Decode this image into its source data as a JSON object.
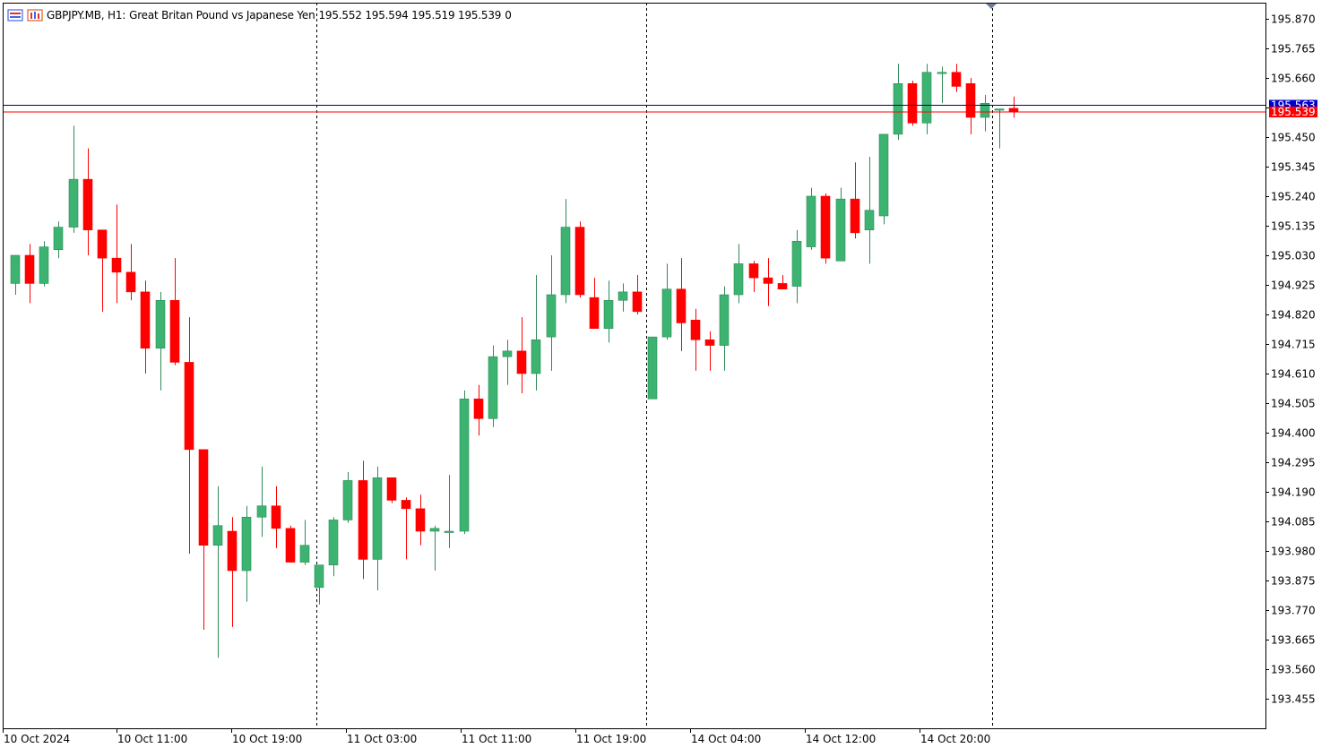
{
  "header": {
    "symbol": "GBPJPY.MB, H1:",
    "description": "Great Britan Pound vs Japanese Yen",
    "ohlc": "195.552 195.594 195.519 195.539",
    "volume": "0"
  },
  "colors": {
    "bull": "#3cb371",
    "bear": "#ff0000",
    "wick_bull": "#2e8b57",
    "bid_line": "#ff0000",
    "ask_line": "#000080",
    "axis": "#000000",
    "text": "#000000"
  },
  "chart_data": {
    "type": "candlestick",
    "timeframe": "H1",
    "y_ticks": [
      "195.870",
      "195.765",
      "195.660",
      "195.555",
      "195.450",
      "195.345",
      "195.240",
      "195.135",
      "195.030",
      "194.925",
      "194.820",
      "194.715",
      "194.610",
      "194.505",
      "194.400",
      "194.295",
      "194.190",
      "194.085",
      "193.980",
      "193.875",
      "193.770",
      "193.665",
      "193.560",
      "193.455"
    ],
    "x_labels": [
      "10 Oct 2024",
      "10 Oct 11:00",
      "10 Oct 19:00",
      "11 Oct 03:00",
      "11 Oct 11:00",
      "11 Oct 19:00",
      "14 Oct 04:00",
      "14 Oct 12:00",
      "14 Oct 20:00"
    ],
    "session_separators": [
      "10 Oct 2024 22:00",
      "11 Oct 2024 21:00",
      "14 Oct 2024 21:00"
    ],
    "bid_price": "195.539",
    "ask_price": "195.563",
    "ylim": [
      193.4,
      195.92
    ],
    "candles": [
      {
        "o": 194.93,
        "h": 195.03,
        "l": 194.89,
        "c": 195.03
      },
      {
        "o": 195.03,
        "h": 195.07,
        "l": 194.86,
        "c": 194.93
      },
      {
        "o": 194.93,
        "h": 195.08,
        "l": 194.92,
        "c": 195.06
      },
      {
        "o": 195.05,
        "h": 195.15,
        "l": 195.02,
        "c": 195.13
      },
      {
        "o": 195.13,
        "h": 195.49,
        "l": 195.11,
        "c": 195.3
      },
      {
        "o": 195.3,
        "h": 195.41,
        "l": 195.03,
        "c": 195.12
      },
      {
        "o": 195.12,
        "h": 195.12,
        "l": 194.83,
        "c": 195.02
      },
      {
        "o": 195.02,
        "h": 195.21,
        "l": 194.86,
        "c": 194.97
      },
      {
        "o": 194.97,
        "h": 195.07,
        "l": 194.87,
        "c": 194.9
      },
      {
        "o": 194.9,
        "h": 194.94,
        "l": 194.61,
        "c": 194.7
      },
      {
        "o": 194.7,
        "h": 194.9,
        "l": 194.55,
        "c": 194.87
      },
      {
        "o": 194.87,
        "h": 195.02,
        "l": 194.64,
        "c": 194.65
      },
      {
        "o": 194.65,
        "h": 194.81,
        "l": 193.97,
        "c": 194.34
      },
      {
        "o": 194.34,
        "h": 194.34,
        "l": 193.7,
        "c": 194.0
      },
      {
        "o": 194.0,
        "h": 194.21,
        "l": 193.6,
        "c": 194.07
      },
      {
        "o": 194.05,
        "h": 194.1,
        "l": 193.71,
        "c": 193.91
      },
      {
        "o": 193.91,
        "h": 194.14,
        "l": 193.8,
        "c": 194.1
      },
      {
        "o": 194.1,
        "h": 194.28,
        "l": 194.03,
        "c": 194.14
      },
      {
        "o": 194.14,
        "h": 194.21,
        "l": 193.99,
        "c": 194.06
      },
      {
        "o": 194.06,
        "h": 194.07,
        "l": 193.94,
        "c": 193.94
      },
      {
        "o": 193.94,
        "h": 194.09,
        "l": 193.93,
        "c": 194.0
      },
      {
        "o": 193.85,
        "h": 193.93,
        "l": 193.79,
        "c": 193.93
      },
      {
        "o": 193.93,
        "h": 194.1,
        "l": 193.89,
        "c": 194.09
      },
      {
        "o": 194.09,
        "h": 194.26,
        "l": 194.08,
        "c": 194.23
      },
      {
        "o": 194.23,
        "h": 194.3,
        "l": 193.88,
        "c": 193.95
      },
      {
        "o": 193.95,
        "h": 194.28,
        "l": 193.84,
        "c": 194.24
      },
      {
        "o": 194.24,
        "h": 194.24,
        "l": 194.15,
        "c": 194.16
      },
      {
        "o": 194.16,
        "h": 194.17,
        "l": 193.95,
        "c": 194.13
      },
      {
        "o": 194.13,
        "h": 194.18,
        "l": 194.0,
        "c": 194.05
      },
      {
        "o": 194.05,
        "h": 194.07,
        "l": 193.91,
        "c": 194.06
      },
      {
        "o": 194.05,
        "h": 194.25,
        "l": 193.99,
        "c": 194.05
      },
      {
        "o": 194.05,
        "h": 194.55,
        "l": 194.04,
        "c": 194.52
      },
      {
        "o": 194.52,
        "h": 194.57,
        "l": 194.39,
        "c": 194.45
      },
      {
        "o": 194.45,
        "h": 194.71,
        "l": 194.42,
        "c": 194.67
      },
      {
        "o": 194.67,
        "h": 194.73,
        "l": 194.57,
        "c": 194.69
      },
      {
        "o": 194.69,
        "h": 194.81,
        "l": 194.54,
        "c": 194.61
      },
      {
        "o": 194.61,
        "h": 194.96,
        "l": 194.55,
        "c": 194.73
      },
      {
        "o": 194.74,
        "h": 195.03,
        "l": 194.62,
        "c": 194.89
      },
      {
        "o": 194.89,
        "h": 195.23,
        "l": 194.86,
        "c": 195.13
      },
      {
        "o": 195.13,
        "h": 195.15,
        "l": 194.88,
        "c": 194.89
      },
      {
        "o": 194.88,
        "h": 194.95,
        "l": 194.77,
        "c": 194.77
      },
      {
        "o": 194.77,
        "h": 194.94,
        "l": 194.72,
        "c": 194.87
      },
      {
        "o": 194.87,
        "h": 194.93,
        "l": 194.83,
        "c": 194.9
      },
      {
        "o": 194.9,
        "h": 194.96,
        "l": 194.82,
        "c": 194.83
      },
      {
        "o": 194.52,
        "h": 194.74,
        "l": 194.52,
        "c": 194.74
      },
      {
        "o": 194.74,
        "h": 195.0,
        "l": 194.73,
        "c": 194.91
      },
      {
        "o": 194.91,
        "h": 195.02,
        "l": 194.69,
        "c": 194.79
      },
      {
        "o": 194.8,
        "h": 194.84,
        "l": 194.62,
        "c": 194.73
      },
      {
        "o": 194.73,
        "h": 194.76,
        "l": 194.62,
        "c": 194.71
      },
      {
        "o": 194.71,
        "h": 194.92,
        "l": 194.62,
        "c": 194.89
      },
      {
        "o": 194.89,
        "h": 195.07,
        "l": 194.86,
        "c": 195.0
      },
      {
        "o": 195.0,
        "h": 195.01,
        "l": 194.9,
        "c": 194.95
      },
      {
        "o": 194.95,
        "h": 195.02,
        "l": 194.85,
        "c": 194.93
      },
      {
        "o": 194.93,
        "h": 194.96,
        "l": 194.91,
        "c": 194.91
      },
      {
        "o": 194.92,
        "h": 195.12,
        "l": 194.86,
        "c": 195.08
      },
      {
        "o": 195.06,
        "h": 195.27,
        "l": 195.05,
        "c": 195.24
      },
      {
        "o": 195.24,
        "h": 195.25,
        "l": 195.0,
        "c": 195.02
      },
      {
        "o": 195.01,
        "h": 195.27,
        "l": 195.01,
        "c": 195.23
      },
      {
        "o": 195.23,
        "h": 195.36,
        "l": 195.09,
        "c": 195.11
      },
      {
        "o": 195.12,
        "h": 195.38,
        "l": 195.0,
        "c": 195.19
      },
      {
        "o": 195.17,
        "h": 195.46,
        "l": 195.14,
        "c": 195.46
      },
      {
        "o": 195.46,
        "h": 195.71,
        "l": 195.44,
        "c": 195.64
      },
      {
        "o": 195.64,
        "h": 195.65,
        "l": 195.49,
        "c": 195.5
      },
      {
        "o": 195.5,
        "h": 195.71,
        "l": 195.46,
        "c": 195.68
      },
      {
        "o": 195.68,
        "h": 195.7,
        "l": 195.57,
        "c": 195.68
      },
      {
        "o": 195.68,
        "h": 195.71,
        "l": 195.61,
        "c": 195.63
      },
      {
        "o": 195.64,
        "h": 195.66,
        "l": 195.46,
        "c": 195.52
      },
      {
        "o": 195.52,
        "h": 195.6,
        "l": 195.47,
        "c": 195.57
      },
      {
        "o": 195.55,
        "h": 195.55,
        "l": 195.41,
        "c": 195.55
      },
      {
        "o": 195.552,
        "h": 195.594,
        "l": 195.519,
        "c": 195.539
      }
    ]
  }
}
